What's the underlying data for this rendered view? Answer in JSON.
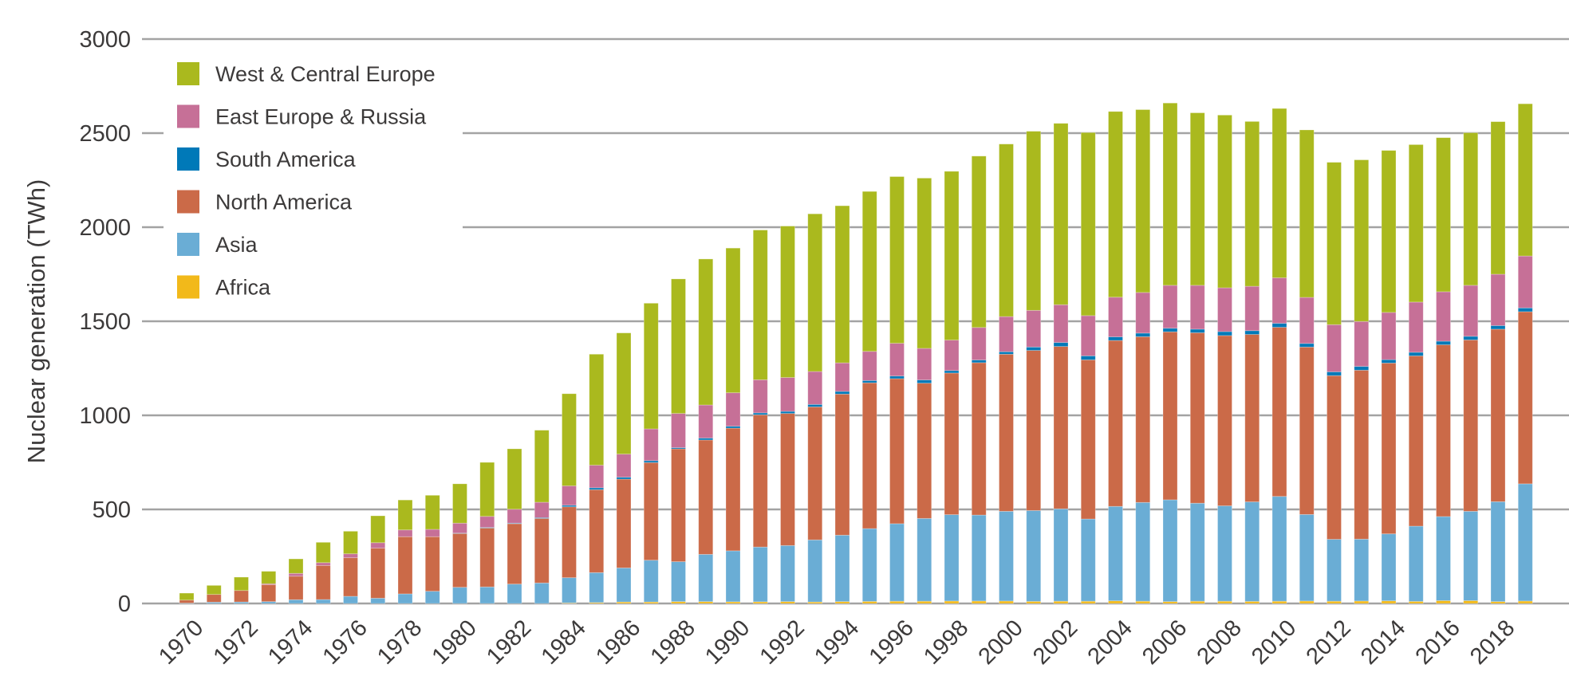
{
  "chart_data": {
    "type": "bar",
    "stacked": true,
    "title": "",
    "xlabel": "",
    "ylabel": "Nuclear generation (TWh)",
    "ylim": [
      0,
      3000
    ],
    "yticks": [
      0,
      500,
      1000,
      1500,
      2000,
      2500,
      3000
    ],
    "grid": true,
    "legend_position": "top-left",
    "categories": [
      1970,
      1971,
      1972,
      1973,
      1974,
      1975,
      1976,
      1977,
      1978,
      1979,
      1980,
      1981,
      1982,
      1983,
      1984,
      1985,
      1986,
      1987,
      1988,
      1989,
      1990,
      1991,
      1992,
      1993,
      1994,
      1995,
      1996,
      1997,
      1998,
      1999,
      2000,
      2001,
      2002,
      2003,
      2004,
      2005,
      2006,
      2007,
      2008,
      2009,
      2010,
      2011,
      2012,
      2013,
      2014,
      2015,
      2016,
      2017,
      2018,
      2019
    ],
    "xtick_labels": [
      "1970",
      "1972",
      "1974",
      "1976",
      "1978",
      "1980",
      "1982",
      "1984",
      "1986",
      "1988",
      "1990",
      "1992",
      "1994",
      "1996",
      "1998",
      "2000",
      "2002",
      "2004",
      "2006",
      "2008",
      "2010",
      "2012",
      "2014",
      "2016",
      "2018"
    ],
    "series": [
      {
        "name": "Africa",
        "color": "#f2b91a",
        "values": [
          0,
          0,
          0,
          0,
          0,
          0,
          0,
          0,
          0,
          0,
          0,
          0,
          0,
          0,
          3,
          5,
          8,
          8,
          10,
          10,
          9,
          9,
          10,
          8,
          10,
          11,
          12,
          12,
          13,
          13,
          13,
          11,
          12,
          12,
          14,
          12,
          10,
          12,
          12,
          11,
          12,
          13,
          12,
          13,
          14,
          11,
          15,
          15,
          10,
          13
        ]
      },
      {
        "name": "Asia",
        "color": "#6aadd5",
        "values": [
          2,
          7,
          8,
          10,
          20,
          21,
          38,
          28,
          51,
          65,
          86,
          88,
          103,
          109,
          134,
          159,
          181,
          222,
          212,
          251,
          271,
          291,
          298,
          330,
          353,
          387,
          412,
          440,
          459,
          457,
          477,
          483,
          491,
          437,
          502,
          525,
          541,
          521,
          507,
          529,
          557,
          460,
          329,
          329,
          356,
          400,
          447,
          475,
          531,
          623
        ]
      },
      {
        "name": "North America",
        "color": "#cb6a48",
        "values": [
          16,
          41,
          61,
          90,
          125,
          181,
          205,
          266,
          304,
          290,
          286,
          313,
          321,
          343,
          377,
          441,
          472,
          519,
          600,
          608,
          652,
          703,
          702,
          707,
          750,
          775,
          771,
          719,
          753,
          810,
          835,
          851,
          863,
          846,
          882,
          881,
          893,
          906,
          905,
          890,
          899,
          890,
          870,
          898,
          908,
          905,
          913,
          911,
          917,
          915
        ]
      },
      {
        "name": "South America",
        "color": "#0079b8",
        "values": [
          0,
          0,
          0,
          0,
          0,
          0,
          0,
          0,
          0,
          0,
          2,
          3,
          3,
          4,
          8,
          10,
          10,
          10,
          6,
          10,
          10,
          10,
          11,
          13,
          14,
          12,
          14,
          17,
          13,
          14,
          13,
          18,
          21,
          21,
          19,
          19,
          19,
          19,
          21,
          20,
          21,
          19,
          20,
          20,
          18,
          19,
          19,
          19,
          19,
          20
        ]
      },
      {
        "name": "East Europe & Russia",
        "color": "#c67097",
        "values": [
          0,
          0,
          0,
          5,
          15,
          15,
          21,
          29,
          36,
          39,
          53,
          59,
          74,
          82,
          103,
          120,
          123,
          169,
          182,
          176,
          178,
          176,
          180,
          175,
          152,
          155,
          174,
          168,
          162,
          173,
          187,
          195,
          201,
          214,
          211,
          216,
          228,
          233,
          233,
          236,
          242,
          245,
          251,
          239,
          251,
          267,
          263,
          271,
          273,
          276
        ]
      },
      {
        "name": "West & Central Europe",
        "color": "#aab91e",
        "values": [
          37,
          48,
          71,
          66,
          77,
          108,
          120,
          143,
          159,
          181,
          209,
          287,
          321,
          383,
          490,
          590,
          644,
          668,
          715,
          776,
          769,
          796,
          805,
          838,
          835,
          850,
          886,
          905,
          897,
          911,
          917,
          952,
          964,
          973,
          987,
          972,
          969,
          917,
          918,
          876,
          900,
          890,
          863,
          859,
          861,
          837,
          819,
          811,
          811,
          809
        ]
      }
    ]
  }
}
